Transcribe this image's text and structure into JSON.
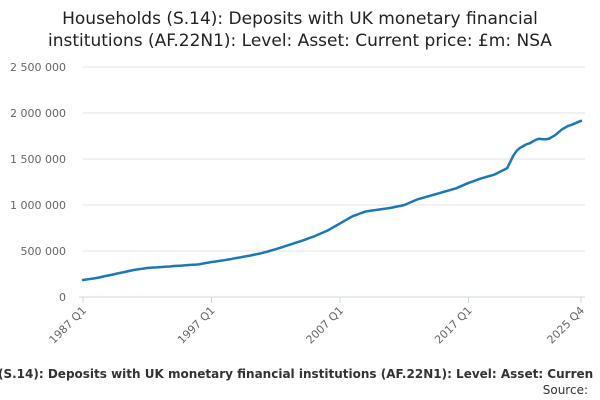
{
  "chart_data": {
    "type": "line",
    "title": [
      "Households (S.14): Deposits with UK monetary financial",
      "institutions (AF.22N1): Level: Asset: Current price: £m: NSA"
    ],
    "footer": "(S.14): Deposits with UK monetary financial institutions (AF.22N1): Level: Asset: Curren",
    "source": "Source:",
    "color": "#1a78b8",
    "grid": true,
    "ylim": [
      0,
      2500000
    ],
    "yticks": [
      0,
      {
        "value": 500000,
        "label": "500 000"
      },
      {
        "value": 1000000,
        "label": "1 000 000"
      },
      {
        "value": 1500000,
        "label": "1 500 000"
      },
      {
        "value": 2000000,
        "label": "2 000 000"
      },
      {
        "value": 2500000,
        "label": "2 500 000"
      }
    ],
    "categories": [
      "1987 Q1",
      null,
      null,
      null,
      null,
      null,
      null,
      null,
      null,
      null,
      null,
      null,
      null,
      null,
      null,
      null,
      null,
      null,
      null,
      null,
      null,
      null,
      null,
      null,
      null,
      null,
      null,
      null,
      null,
      null,
      null,
      null,
      null,
      null,
      null,
      null,
      null,
      null,
      null,
      null,
      "1997 Q1",
      null,
      null,
      null,
      null,
      null,
      null,
      null,
      null,
      null,
      null,
      null,
      null,
      null,
      null,
      null,
      null,
      null,
      null,
      null,
      null,
      null,
      null,
      null,
      null,
      null,
      null,
      null,
      null,
      null,
      null,
      null,
      null,
      null,
      null,
      null,
      null,
      null,
      null,
      null,
      "2007 Q1",
      null,
      null,
      null,
      null,
      null,
      null,
      null,
      null,
      null,
      null,
      null,
      null,
      null,
      null,
      null,
      null,
      null,
      null,
      null,
      null,
      null,
      null,
      null,
      null,
      null,
      null,
      null,
      null,
      null,
      null,
      null,
      null,
      null,
      null,
      null,
      null,
      null,
      null,
      null,
      "2017 Q1",
      null,
      null,
      null,
      null,
      null,
      null,
      null,
      null,
      null,
      null,
      null,
      null,
      null,
      null,
      null,
      null,
      null,
      null,
      null,
      null,
      null,
      null,
      null,
      null,
      null,
      null,
      null,
      null,
      null,
      null,
      null,
      null,
      null,
      null,
      "2025 Q4"
    ],
    "values": [
      185000,
      190000,
      195000,
      200000,
      205000,
      212000,
      220000,
      228000,
      235000,
      242000,
      250000,
      258000,
      265000,
      272000,
      280000,
      288000,
      295000,
      300000,
      305000,
      310000,
      315000,
      318000,
      320000,
      322000,
      325000,
      328000,
      330000,
      332000,
      335000,
      338000,
      340000,
      342000,
      345000,
      348000,
      350000,
      352000,
      355000,
      361000,
      368000,
      374000,
      380000,
      385000,
      390000,
      395000,
      400000,
      406000,
      412000,
      419000,
      425000,
      431000,
      438000,
      444000,
      450000,
      458000,
      465000,
      472000,
      480000,
      490000,
      500000,
      510000,
      520000,
      531000,
      542000,
      554000,
      565000,
      576000,
      588000,
      599000,
      610000,
      622000,
      635000,
      648000,
      660000,
      675000,
      690000,
      705000,
      720000,
      740000,
      760000,
      780000,
      800000,
      820000,
      840000,
      860000,
      880000,
      892000,
      905000,
      918000,
      930000,
      935000,
      940000,
      945000,
      950000,
      955000,
      960000,
      965000,
      970000,
      978000,
      985000,
      992000,
      1000000,
      1015000,
      1030000,
      1045000,
      1060000,
      1070000,
      1080000,
      1090000,
      1100000,
      1110000,
      1120000,
      1130000,
      1140000,
      1150000,
      1160000,
      1170000,
      1180000,
      1195000,
      1210000,
      1225000,
      1240000,
      1252000,
      1265000,
      1278000,
      1290000,
      1300000,
      1310000,
      1320000,
      1330000,
      1348000,
      1365000,
      1382000,
      1400000,
      1470000,
      1540000,
      1590000,
      1620000,
      1640000,
      1660000,
      1670000,
      1690000,
      1710000,
      1720000,
      1715000,
      1715000,
      1720000,
      1740000,
      1760000,
      1790000,
      1820000,
      1840000,
      1860000,
      1870000,
      1885000,
      1900000,
      1915000
    ]
  }
}
